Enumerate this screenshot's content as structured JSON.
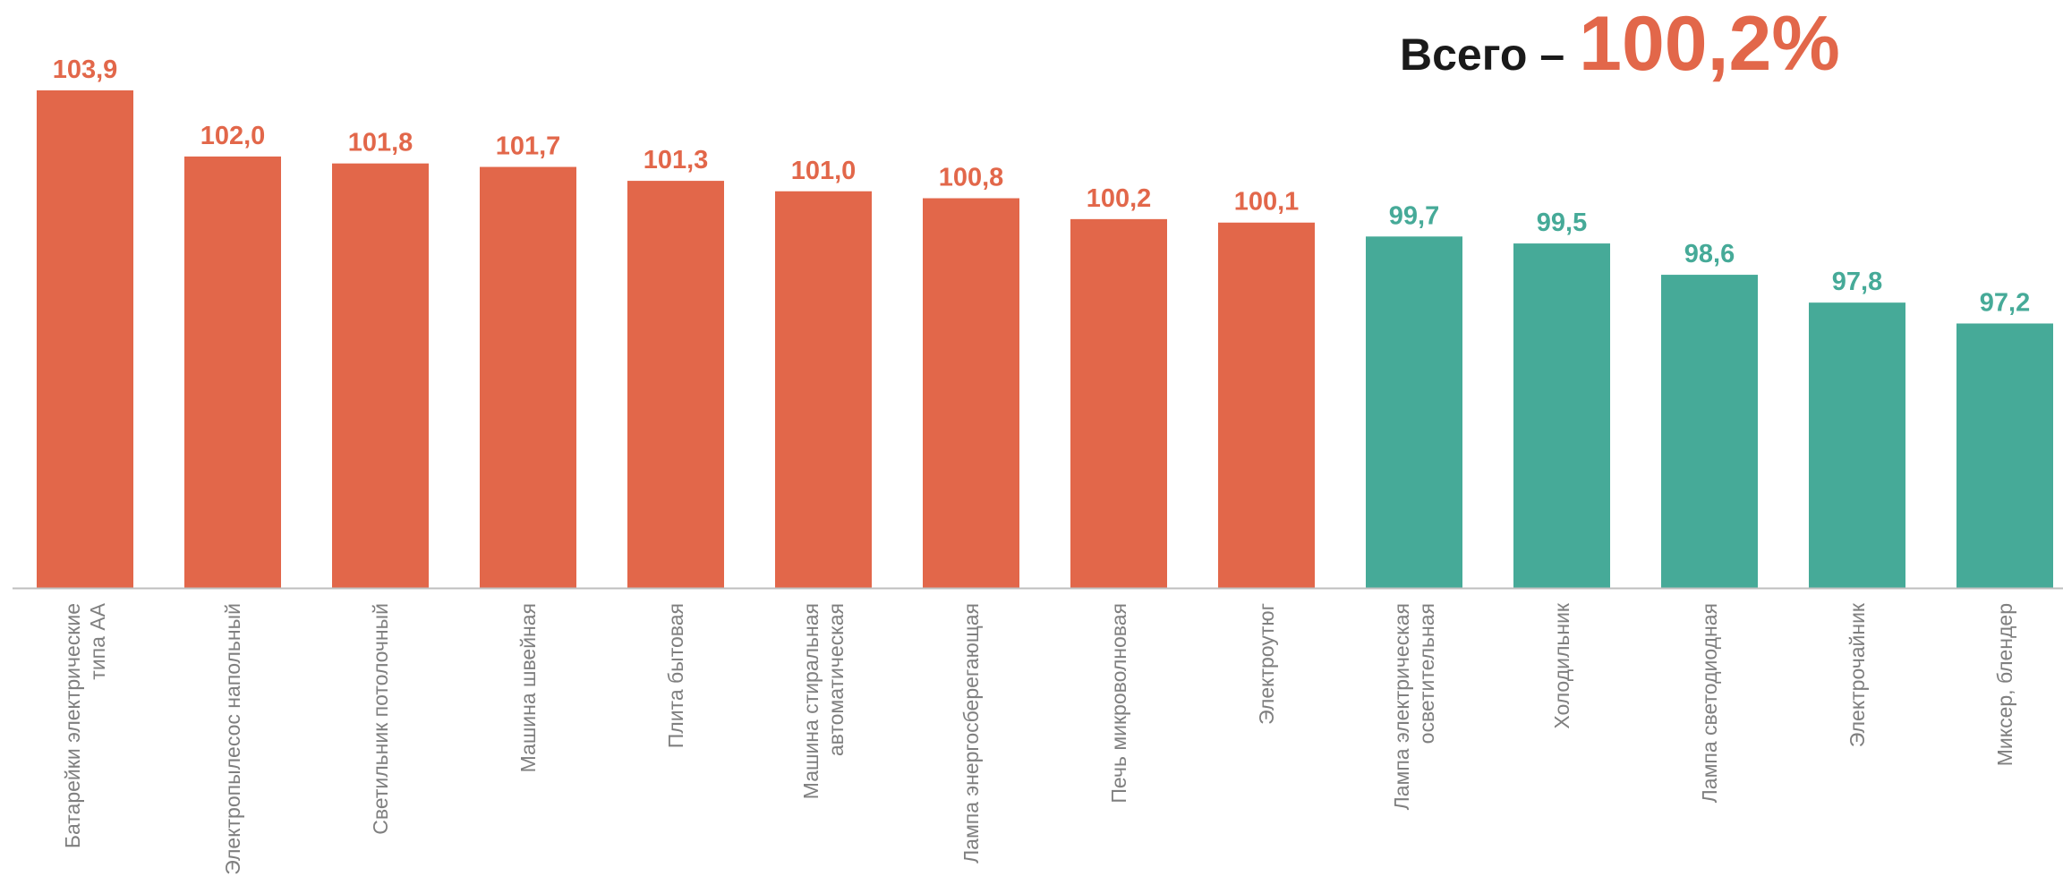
{
  "total": {
    "label": "Всего –",
    "value": "100,2%"
  },
  "colors": {
    "above": "#e2674a",
    "below": "#46aa98",
    "axis": "#bfbfbf",
    "category_text": "#7f7f7f"
  },
  "chart_data": {
    "type": "bar",
    "categories": [
      "Батарейки электрические типа АА",
      "Электропылесос напольный",
      "Светильник потолочный",
      "Машина швейная",
      "Плита бытовая",
      "Машина стиральная автоматическая",
      "Лампа энергосберегающая",
      "Печь микроволновая",
      "Электроутюг",
      "Лампа электрическая осветительная",
      "Холодильник",
      "Лампа светодиодная",
      "Электрочайник",
      "Миксер, блендер"
    ],
    "category_lines": [
      [
        "Батарейки электрические",
        "типа АА"
      ],
      [
        "Электропылесос напольный"
      ],
      [
        "Светильник потолочный"
      ],
      [
        "Машина швейная"
      ],
      [
        "Плита бытовая"
      ],
      [
        "Машина стиральная",
        "автоматическая"
      ],
      [
        "Лампа энергосберегающая"
      ],
      [
        "Печь микроволновая"
      ],
      [
        "Электроутюг"
      ],
      [
        "Лампа электрическая",
        "осветительная"
      ],
      [
        "Холодильник"
      ],
      [
        "Лампа светодиодная"
      ],
      [
        "Электрочайник"
      ],
      [
        "Миксер, блендер"
      ]
    ],
    "values": [
      103.9,
      102.0,
      101.8,
      101.7,
      101.3,
      101.0,
      100.8,
      100.2,
      100.1,
      99.7,
      99.5,
      98.6,
      97.8,
      97.2
    ],
    "value_labels": [
      "103,9",
      "102,0",
      "101,8",
      "101,7",
      "101,3",
      "101,0",
      "100,8",
      "100,2",
      "100,1",
      "99,7",
      "99,5",
      "98,6",
      "97,8",
      "97,2"
    ],
    "threshold": 100,
    "ylim": [
      89.6,
      103.9
    ],
    "grid": false,
    "title": "",
    "xlabel": "",
    "ylabel": ""
  }
}
